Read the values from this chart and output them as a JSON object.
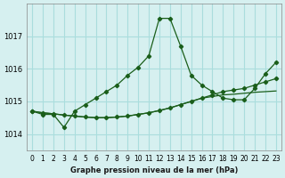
{
  "title": "Graphe pression niveau de la mer (hPa)",
  "background_color": "#d6f0f0",
  "grid_color": "#aadddd",
  "line_color": "#1a5e1a",
  "marker_color": "#1a5e1a",
  "xlim": [
    -0.5,
    23.5
  ],
  "ylim": [
    1013.5,
    1018.0
  ],
  "yticks": [
    1014,
    1015,
    1016,
    1017
  ],
  "xtick_labels": [
    "0",
    "1",
    "2",
    "3",
    "4",
    "5",
    "6",
    "7",
    "8",
    "9",
    "10",
    "11",
    "12",
    "13",
    "14",
    "15",
    "16",
    "17",
    "18",
    "19",
    "20",
    "21",
    "22",
    "23"
  ],
  "series1": [
    1014.7,
    1014.6,
    1014.6,
    1014.2,
    1014.7,
    1014.9,
    1015.1,
    1015.3,
    1015.5,
    1015.8,
    1016.05,
    1016.4,
    1017.55,
    1017.55,
    1016.7,
    1015.8,
    1015.5,
    1015.3,
    1015.1,
    1015.05,
    1015.05,
    1015.4,
    1015.85,
    1016.2
  ],
  "series2": [
    1014.7,
    1014.65,
    1014.62,
    1014.58,
    1014.55,
    1014.52,
    1014.5,
    1014.5,
    1014.52,
    1014.55,
    1014.6,
    1014.65,
    1014.72,
    1014.8,
    1014.9,
    1015.0,
    1015.1,
    1015.2,
    1015.3,
    1015.35,
    1015.4,
    1015.5,
    1015.6,
    1015.7
  ],
  "series3": [
    1014.7,
    1014.65,
    1014.62,
    1014.58,
    1014.55,
    1014.52,
    1014.5,
    1014.5,
    1014.52,
    1014.55,
    1014.6,
    1014.65,
    1014.72,
    1014.8,
    1014.9,
    1015.0,
    1015.1,
    1015.15,
    1015.2,
    1015.22,
    1015.25,
    1015.28,
    1015.3,
    1015.32
  ]
}
